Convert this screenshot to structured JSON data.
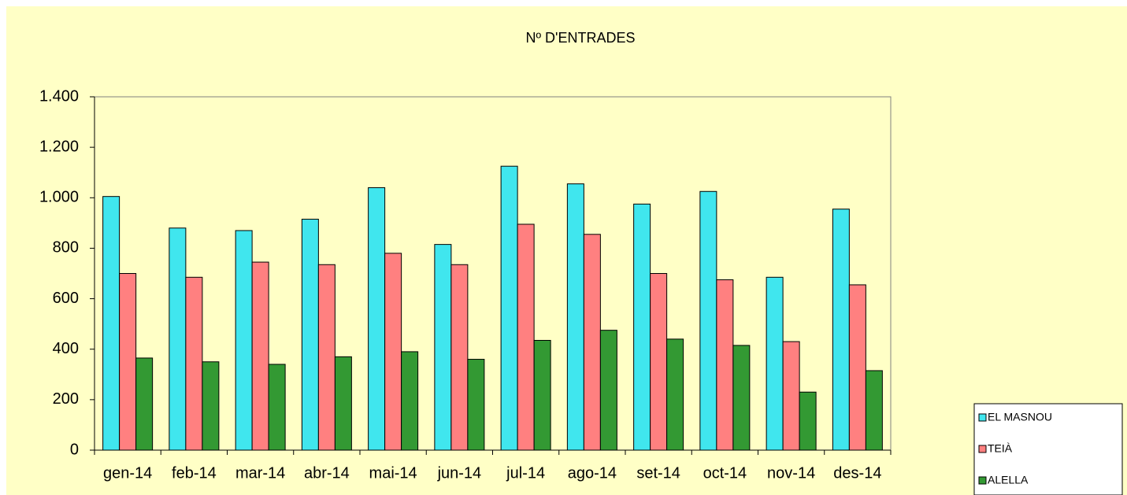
{
  "chart_data": {
    "type": "bar",
    "title": "Nº D'ENTRADES",
    "categories": [
      "gen-14",
      "feb-14",
      "mar-14",
      "abr-14",
      "mai-14",
      "jun-14",
      "jul-14",
      "ago-14",
      "set-14",
      "oct-14",
      "nov-14",
      "des-14"
    ],
    "series": [
      {
        "name": "EL MASNOU",
        "color": "#40e6ee",
        "values": [
          1005,
          880,
          870,
          915,
          1040,
          815,
          1125,
          1055,
          975,
          1025,
          685,
          955
        ]
      },
      {
        "name": "TEIÀ",
        "color": "#ff8080",
        "values": [
          700,
          685,
          745,
          735,
          780,
          735,
          895,
          855,
          700,
          675,
          430,
          655
        ]
      },
      {
        "name": "ALELLA",
        "color": "#339933",
        "values": [
          365,
          350,
          340,
          370,
          390,
          360,
          435,
          475,
          440,
          415,
          230,
          315
        ]
      }
    ],
    "ylim": [
      0,
      1400
    ],
    "yticks": [
      0,
      200,
      400,
      600,
      800,
      {
        "value": 1000,
        "label": "1.000"
      },
      {
        "value": 1200,
        "label": "1.200"
      },
      {
        "value": 1400,
        "label": "1.400"
      }
    ],
    "legend": "bottom-right"
  }
}
